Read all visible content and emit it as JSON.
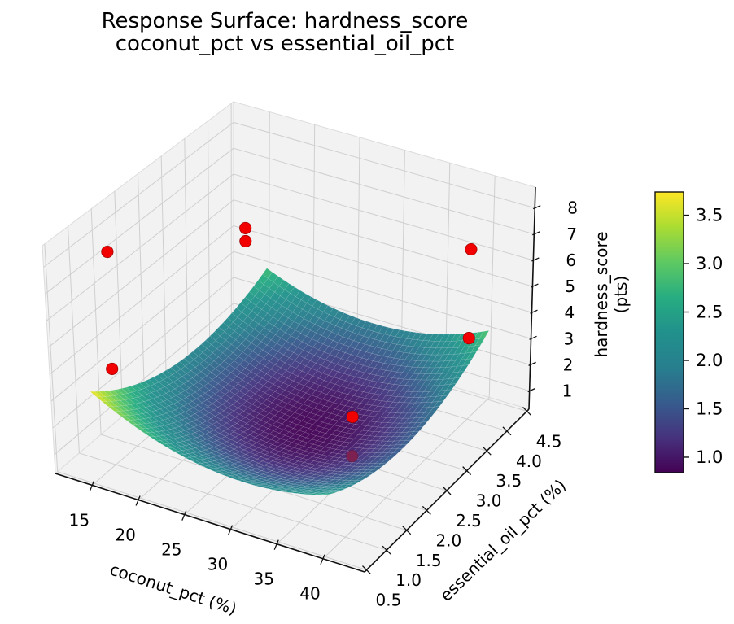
{
  "title": {
    "line1": "Response Surface: hardness_score",
    "line2": "coconut_pct vs essential_oil_pct"
  },
  "chart_data": {
    "type": "surface3d",
    "title": "Response Surface: hardness_score — coconut_pct vs essential_oil_pct",
    "xlabel": "coconut_pct (%)",
    "ylabel": "essential_oil_pct (%)",
    "zlabel": "hardness_score (pts)",
    "xlim": [
      11,
      44.5
    ],
    "ylim": [
      0.45,
      4.55
    ],
    "zlim": [
      0.3,
      8.8
    ],
    "x_ticks": [
      15,
      20,
      25,
      30,
      35,
      40
    ],
    "x_tick_labels": [
      "15",
      "20",
      "25",
      "30",
      "35",
      "40"
    ],
    "y_ticks": [
      0.5,
      1.0,
      1.5,
      2.0,
      2.5,
      3.0,
      3.5,
      4.0,
      4.5
    ],
    "y_tick_labels": [
      "0.5",
      "1.0",
      "1.5",
      "2.0",
      "2.5",
      "3.0",
      "3.5",
      "4.0",
      "4.5"
    ],
    "z_ticks": [
      1,
      2,
      3,
      4,
      5,
      6,
      7,
      8
    ],
    "z_tick_labels": [
      "1",
      "2",
      "3",
      "4",
      "5",
      "6",
      "7",
      "8"
    ],
    "view": {
      "elev": 30,
      "azim": -60,
      "grid": true,
      "legend": "none"
    },
    "surface": {
      "model": "z = 0.85 + 0.0062*(x-29)^2 + 0.30*(y-2.6)^2 + 0.012*(x-29)*(y-2.6)",
      "coeffs": {
        "base": 0.85,
        "x0": 29,
        "y0": 2.6,
        "cx2": 0.0062,
        "cy2": 0.3,
        "cxy": 0.012
      },
      "x_domain": [
        15,
        40
      ],
      "y_domain": [
        0.5,
        4.5
      ],
      "z_range": [
        0.84,
        3.74
      ],
      "colormap": "viridis",
      "grid_n": 40
    },
    "scatter_points": [
      {
        "x": 15,
        "y": 1.0,
        "z": 8.3,
        "occluded": false
      },
      {
        "x": 20,
        "y": 3.0,
        "z": 7.0,
        "occluded": false
      },
      {
        "x": 20,
        "y": 3.0,
        "z": 6.5,
        "occluded": false
      },
      {
        "x": 40,
        "y": 4.0,
        "z": 6.8,
        "occluded": false
      },
      {
        "x": 40,
        "y": 4.0,
        "z": 3.4,
        "occluded": false
      },
      {
        "x": 15,
        "y": 1.0,
        "z": 3.9,
        "occluded": false
      },
      {
        "x": 34,
        "y": 2.5,
        "z": 2.0,
        "occluded": false
      },
      {
        "x": 34,
        "y": 2.5,
        "z": 0.5,
        "occluded": true
      }
    ],
    "colorbar": {
      "vmin": 0.84,
      "vmax": 3.74,
      "ticks": [
        1.0,
        1.5,
        2.0,
        2.5,
        3.0,
        3.5
      ],
      "tick_labels": [
        "1.0",
        "1.5",
        "2.0",
        "2.5",
        "3.0",
        "3.5"
      ],
      "colormap": "viridis"
    }
  },
  "colors": {
    "scatter": "#f20000",
    "scatter_edge": "#990000",
    "scatter_occluded": "#7d2150",
    "pane": "#f2f2f2",
    "pane_edge": "#dcdcdc",
    "grid": "#cfcfcf",
    "axis": "#111111",
    "text": "#000000",
    "background": "#ffffff"
  }
}
